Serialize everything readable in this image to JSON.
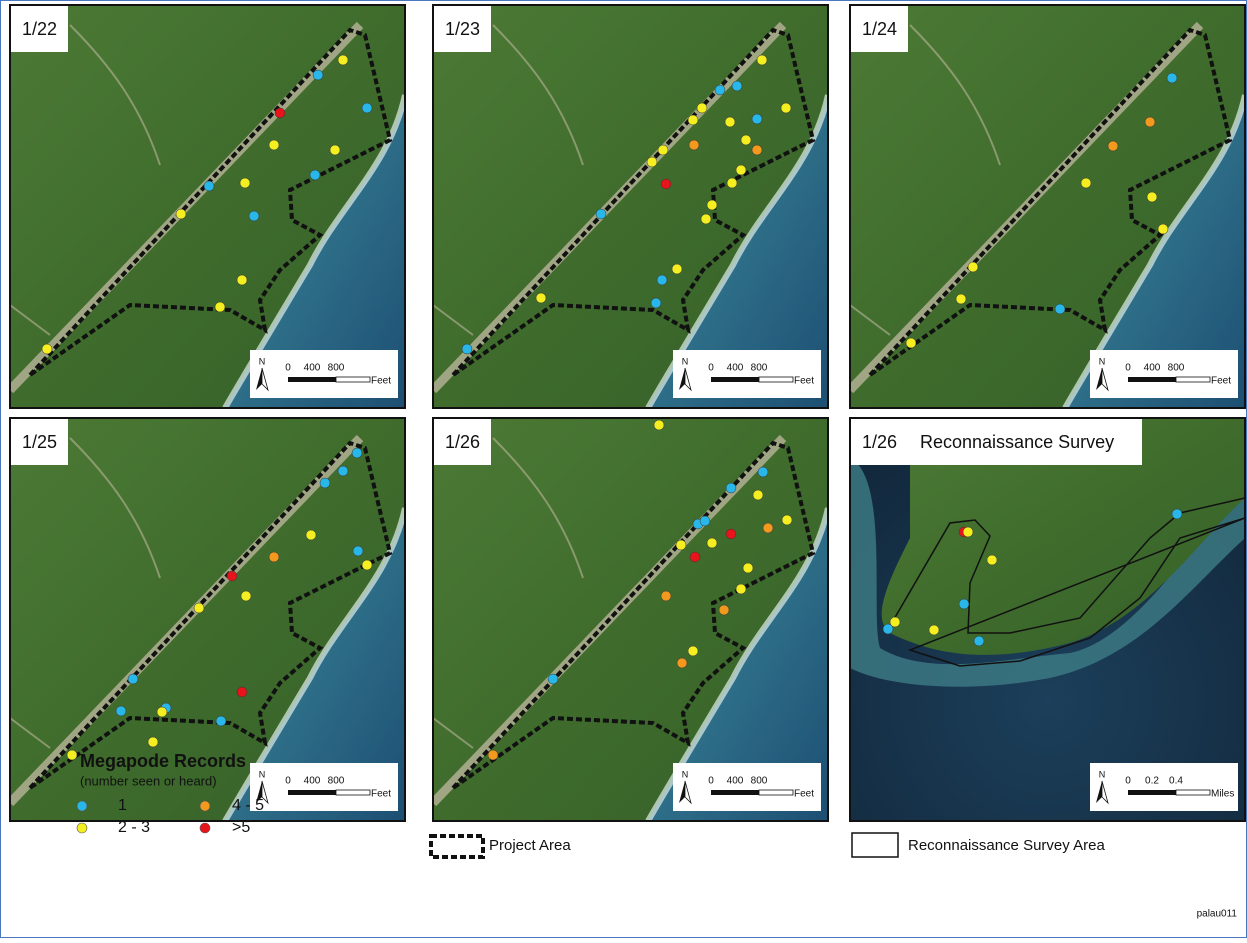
{
  "panels": [
    {
      "label": "1/22",
      "scale": {
        "north": "N",
        "ticks": [
          "0",
          "400",
          "800"
        ],
        "unit": "Feet"
      }
    },
    {
      "label": "1/23",
      "scale": {
        "north": "N",
        "ticks": [
          "0",
          "400",
          "800"
        ],
        "unit": "Feet"
      }
    },
    {
      "label": "1/24",
      "scale": {
        "north": "N",
        "ticks": [
          "0",
          "400",
          "800"
        ],
        "unit": "Feet"
      }
    },
    {
      "label": "1/25",
      "scale": {
        "north": "N",
        "ticks": [
          "0",
          "400",
          "800"
        ],
        "unit": "Feet"
      }
    },
    {
      "label": "1/26",
      "scale": {
        "north": "N",
        "ticks": [
          "0",
          "400",
          "800"
        ],
        "unit": "Feet"
      }
    },
    {
      "label": "1/26",
      "subtitle": "Reconnaissance Survey",
      "scale": {
        "north": "N",
        "ticks": [
          "0",
          "0.2",
          "0.4"
        ],
        "unit": "Miles"
      }
    }
  ],
  "legend": {
    "title": "Megapode Records",
    "subtitle": "(number seen or heard)",
    "classes": [
      {
        "label": "1",
        "color": "#29b6e8"
      },
      {
        "label": "2 - 3",
        "color": "#f5ee21"
      },
      {
        "label": "4 - 5",
        "color": "#f39a1e"
      },
      {
        "label": ">5",
        "color": "#e8141c"
      }
    ]
  },
  "project_area": "Project Area",
  "survey_area": "Reconnaissance Survey Area",
  "figure_id": "palau011"
}
